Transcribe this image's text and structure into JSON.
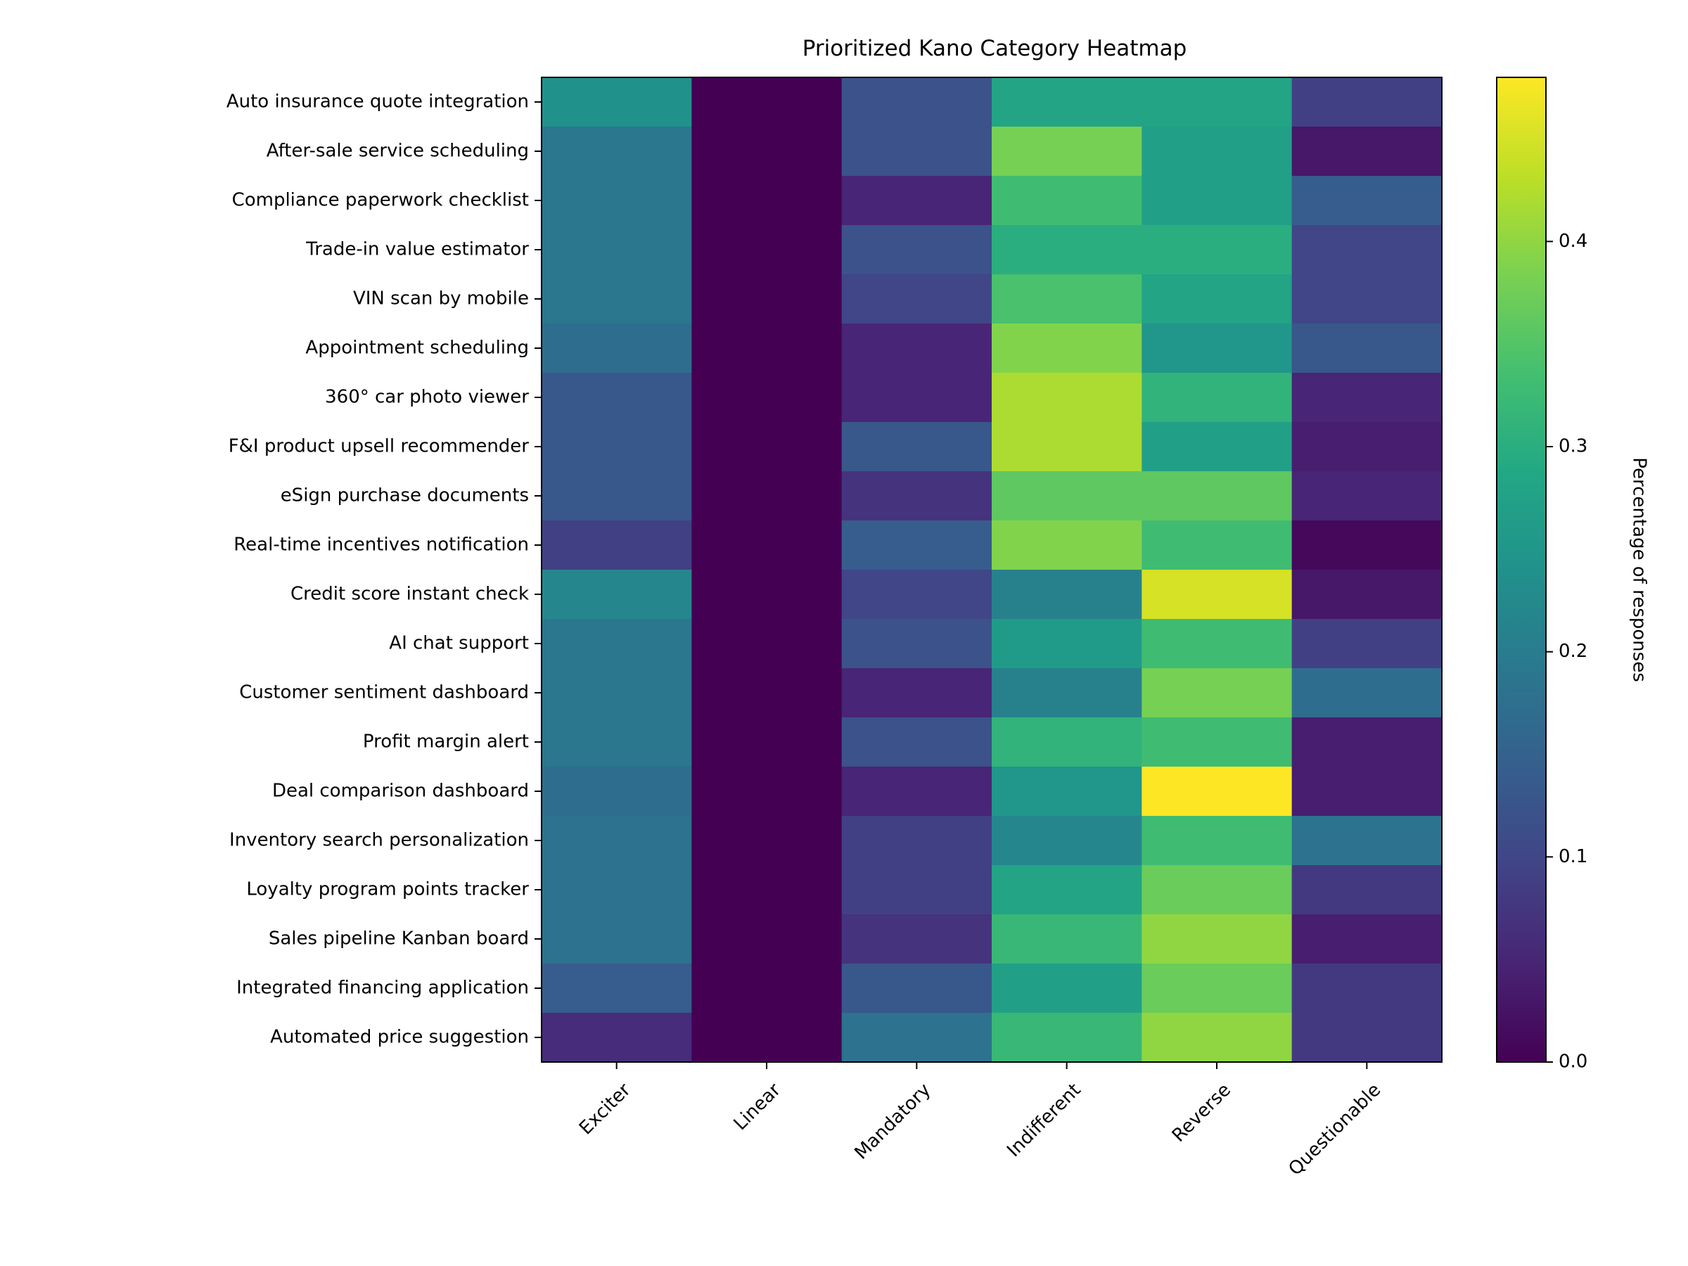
{
  "chart_data": {
    "type": "heatmap",
    "title": "Prioritized Kano Category Heatmap",
    "columns": [
      "Exciter",
      "Linear",
      "Mandatory",
      "Indifferent",
      "Reverse",
      "Questionable"
    ],
    "rows": [
      "Auto insurance quote integration",
      "After-sale service scheduling",
      "Compliance paperwork checklist",
      "Trade-in value estimator",
      "VIN scan by mobile",
      "Appointment scheduling",
      "360° car photo viewer",
      "F&I product upsell recommender",
      "eSign purchase documents",
      "Real-time incentives notification",
      "Credit score instant check",
      "AI chat support",
      "Customer sentiment dashboard",
      "Profit margin alert",
      "Deal comparison dashboard",
      "Inventory search personalization",
      "Loyalty program points tracker",
      "Sales pipeline Kanban board",
      "Integrated financing application",
      "Automated price suggestion"
    ],
    "values": [
      [
        0.24,
        0.0,
        0.12,
        0.28,
        0.28,
        0.09
      ],
      [
        0.19,
        0.0,
        0.12,
        0.38,
        0.27,
        0.03
      ],
      [
        0.19,
        0.0,
        0.05,
        0.33,
        0.27,
        0.14
      ],
      [
        0.19,
        0.0,
        0.12,
        0.3,
        0.3,
        0.1
      ],
      [
        0.19,
        0.0,
        0.1,
        0.34,
        0.28,
        0.1
      ],
      [
        0.17,
        0.0,
        0.05,
        0.39,
        0.25,
        0.13
      ],
      [
        0.13,
        0.0,
        0.05,
        0.42,
        0.31,
        0.05
      ],
      [
        0.13,
        0.0,
        0.13,
        0.42,
        0.27,
        0.04
      ],
      [
        0.13,
        0.0,
        0.07,
        0.36,
        0.36,
        0.05
      ],
      [
        0.09,
        0.0,
        0.14,
        0.39,
        0.33,
        0.01
      ],
      [
        0.22,
        0.0,
        0.1,
        0.21,
        0.45,
        0.03
      ],
      [
        0.19,
        0.0,
        0.12,
        0.26,
        0.33,
        0.09
      ],
      [
        0.19,
        0.0,
        0.05,
        0.21,
        0.38,
        0.17
      ],
      [
        0.19,
        0.0,
        0.12,
        0.31,
        0.33,
        0.04
      ],
      [
        0.17,
        0.0,
        0.05,
        0.25,
        0.48,
        0.04
      ],
      [
        0.18,
        0.0,
        0.09,
        0.22,
        0.33,
        0.18
      ],
      [
        0.18,
        0.0,
        0.09,
        0.28,
        0.37,
        0.08
      ],
      [
        0.18,
        0.0,
        0.07,
        0.32,
        0.4,
        0.04
      ],
      [
        0.14,
        0.0,
        0.13,
        0.27,
        0.37,
        0.08
      ],
      [
        0.06,
        0.0,
        0.18,
        0.32,
        0.4,
        0.08
      ]
    ],
    "colorbar": {
      "label": "Percentage of responses",
      "min": 0.0,
      "max": 0.48,
      "ticks": [
        "0.0",
        "0.1",
        "0.2",
        "0.3",
        "0.4"
      ],
      "colormap": "viridis"
    }
  }
}
